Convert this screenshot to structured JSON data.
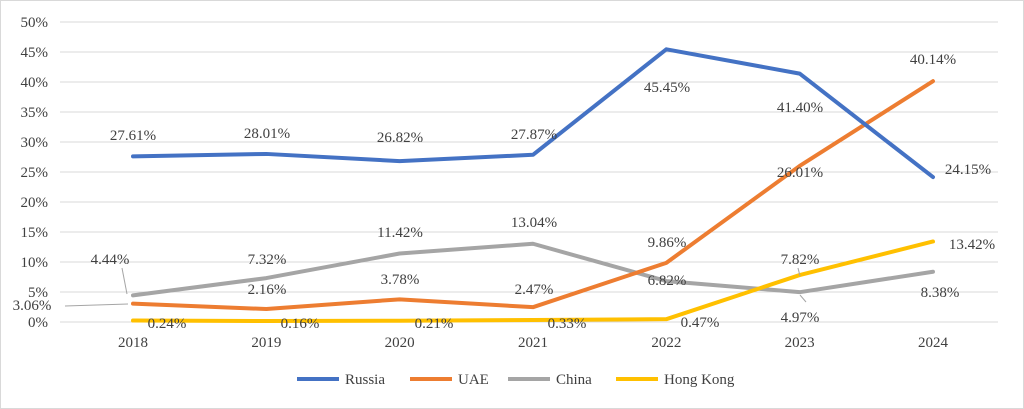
{
  "chart_data": {
    "type": "line",
    "title": "",
    "xlabel": "",
    "ylabel": "",
    "categories": [
      "2018",
      "2019",
      "2020",
      "2021",
      "2022",
      "2023",
      "2024"
    ],
    "ylim": [
      0,
      50
    ],
    "yticks": [
      "0%",
      "5%",
      "10%",
      "15%",
      "20%",
      "25%",
      "30%",
      "35%",
      "40%",
      "45%",
      "50%"
    ],
    "grid": true,
    "legend_position": "bottom",
    "series": [
      {
        "name": "Russia",
        "color": "#4472c4",
        "values": [
          27.61,
          28.01,
          26.82,
          27.87,
          45.45,
          41.4,
          24.15
        ],
        "labels": [
          "27.61%",
          "28.01%",
          "26.82%",
          "27.87%",
          "45.45%",
          "41.40%",
          "24.15%"
        ]
      },
      {
        "name": "UAE",
        "color": "#ed7d31",
        "values": [
          3.06,
          2.16,
          3.78,
          2.47,
          9.86,
          26.01,
          40.14
        ],
        "labels": [
          "3.06%",
          "2.16%",
          "3.78%",
          "2.47%",
          "9.86%",
          "26.01%",
          "40.14%"
        ]
      },
      {
        "name": "China",
        "color": "#a5a5a5",
        "values": [
          4.44,
          7.32,
          11.42,
          13.04,
          6.82,
          4.97,
          8.38
        ],
        "labels": [
          "4.44%",
          "7.32%",
          "11.42%",
          "13.04%",
          "6.82%",
          "4.97%",
          "8.38%"
        ]
      },
      {
        "name": "Hong Kong",
        "color": "#ffc000",
        "values": [
          0.24,
          0.16,
          0.21,
          0.33,
          0.47,
          7.82,
          13.42
        ],
        "labels": [
          "0.24%",
          "0.16%",
          "0.21%",
          "0.33%",
          "0.47%",
          "7.82%",
          "13.42%"
        ]
      }
    ]
  }
}
